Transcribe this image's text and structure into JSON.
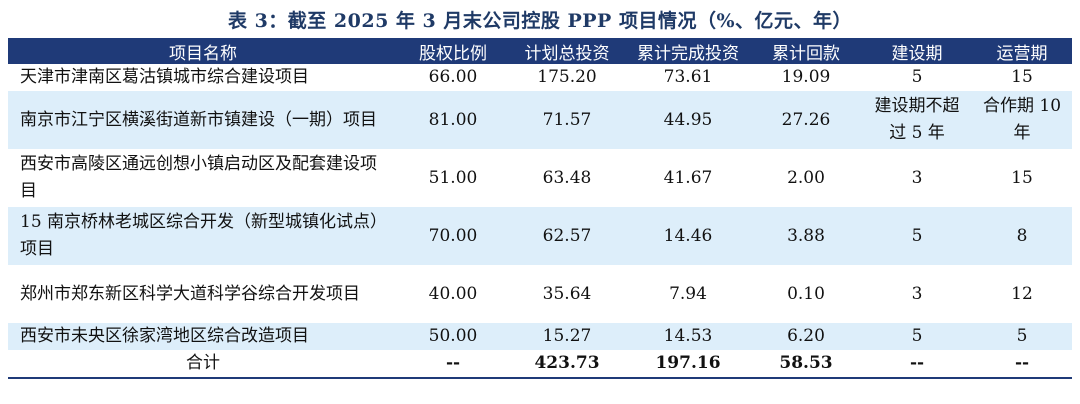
{
  "title": "表 3：截至 2025 年 3 月末公司控股 PPP 项目情况（%、亿元、年）",
  "headers": [
    "项目名称",
    "股权比例",
    "计划总投资",
    "累计完成投资",
    "累计回款",
    "建设期",
    "运营期"
  ],
  "rows": [
    [
      "天津市津南区葛沽镇城市综合建设项目",
      "66.00",
      "175.20",
      "73.61",
      "19.09",
      "5",
      "15"
    ],
    [
      "南京市江宁区横溪街道新市镇建设（一期）项目",
      "81.00",
      "71.57",
      "44.95",
      "27.26",
      "建设期不超过 5 年",
      "合作期 10 年"
    ],
    [
      "西安市高陵区通远创想小镇启动区及配套建设项目",
      "51.00",
      "63.48",
      "41.67",
      "2.00",
      "3",
      "15"
    ],
    [
      "15 南京桥林老城区综合开发（新型城镇化试点）项目",
      "70.00",
      "62.57",
      "14.46",
      "3.88",
      "5",
      "8"
    ],
    [
      "郑州市郑东新区科学大道科学谷综合开发项目",
      "40.00",
      "35.64",
      "7.94",
      "0.10",
      "3",
      "12"
    ],
    [
      "西安市未央区徐家湾地区综合改造项目",
      "50.00",
      "15.27",
      "14.53",
      "6.20",
      "5",
      "5"
    ]
  ],
  "total": [
    "合计",
    "--",
    "423.73",
    "197.16",
    "58.53",
    "--",
    "--"
  ]
}
